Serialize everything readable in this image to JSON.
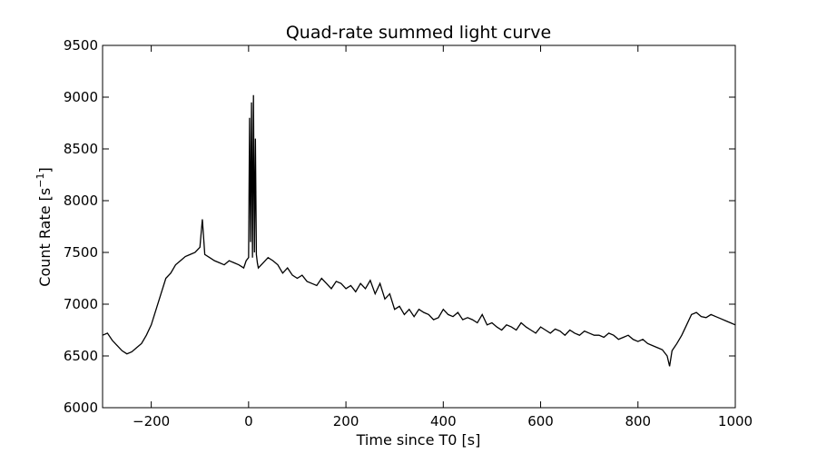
{
  "chart_data": {
    "type": "line",
    "title": "Quad-rate summed light curve",
    "xlabel": "Time since T0 [s]",
    "ylabel_main": "Count Rate [s",
    "ylabel_sup": "−1",
    "ylabel_end": "]",
    "xlim": [
      -300,
      1000
    ],
    "ylim": [
      6000,
      9500
    ],
    "xticks": [
      -200,
      0,
      200,
      400,
      600,
      800,
      1000
    ],
    "yticks": [
      6000,
      6500,
      7000,
      7500,
      8000,
      8500,
      9000,
      9500
    ],
    "grid": false,
    "legend": "none",
    "line_color": "#000000",
    "series": [
      {
        "x": [
          -300,
          -290,
          -280,
          -270,
          -260,
          -250,
          -240,
          -230,
          -220,
          -210,
          -200,
          -190,
          -180,
          -170,
          -160,
          -150,
          -140,
          -130,
          -120,
          -110,
          -100,
          -95,
          -90,
          -80,
          -70,
          -60,
          -50,
          -40,
          -30,
          -20,
          -10,
          -5,
          0,
          2,
          4,
          6,
          8,
          10,
          12,
          14,
          16,
          18,
          20,
          30,
          40,
          50,
          60,
          70,
          80,
          90,
          100,
          110,
          120,
          130,
          140,
          150,
          160,
          170,
          180,
          190,
          200,
          210,
          220,
          230,
          240,
          250,
          260,
          270,
          280,
          290,
          300,
          310,
          320,
          330,
          340,
          350,
          360,
          370,
          380,
          390,
          400,
          410,
          420,
          430,
          440,
          450,
          460,
          470,
          480,
          490,
          500,
          510,
          520,
          530,
          540,
          550,
          560,
          570,
          580,
          590,
          600,
          610,
          620,
          630,
          640,
          650,
          660,
          670,
          680,
          690,
          700,
          710,
          720,
          730,
          740,
          750,
          760,
          770,
          780,
          790,
          800,
          810,
          820,
          830,
          840,
          850,
          860,
          865,
          870,
          880,
          890,
          900,
          910,
          920,
          930,
          940,
          950,
          960,
          970,
          980,
          990,
          1000
        ],
        "y": [
          6700,
          6720,
          6650,
          6600,
          6550,
          6520,
          6540,
          6580,
          6620,
          6700,
          6800,
          6950,
          7100,
          7250,
          7300,
          7380,
          7420,
          7460,
          7480,
          7500,
          7550,
          7820,
          7480,
          7450,
          7420,
          7400,
          7380,
          7420,
          7400,
          7380,
          7350,
          7420,
          7450,
          8800,
          7600,
          8950,
          7450,
          9020,
          7500,
          8600,
          7480,
          7400,
          7350,
          7400,
          7450,
          7420,
          7380,
          7300,
          7350,
          7280,
          7250,
          7280,
          7220,
          7200,
          7180,
          7250,
          7200,
          7150,
          7220,
          7200,
          7150,
          7180,
          7120,
          7200,
          7150,
          7230,
          7100,
          7200,
          7050,
          7100,
          6950,
          6980,
          6900,
          6950,
          6880,
          6950,
          6920,
          6900,
          6850,
          6870,
          6950,
          6900,
          6880,
          6920,
          6850,
          6870,
          6850,
          6820,
          6900,
          6800,
          6820,
          6780,
          6750,
          6800,
          6780,
          6750,
          6820,
          6780,
          6750,
          6720,
          6780,
          6750,
          6720,
          6760,
          6740,
          6700,
          6750,
          6720,
          6700,
          6740,
          6720,
          6700,
          6700,
          6680,
          6720,
          6700,
          6660,
          6680,
          6700,
          6660,
          6640,
          6660,
          6620,
          6600,
          6580,
          6560,
          6500,
          6400,
          6550,
          6620,
          6700,
          6800,
          6900,
          6920,
          6880,
          6870,
          6900,
          6880,
          6860,
          6840,
          6820,
          6800
        ]
      }
    ]
  }
}
